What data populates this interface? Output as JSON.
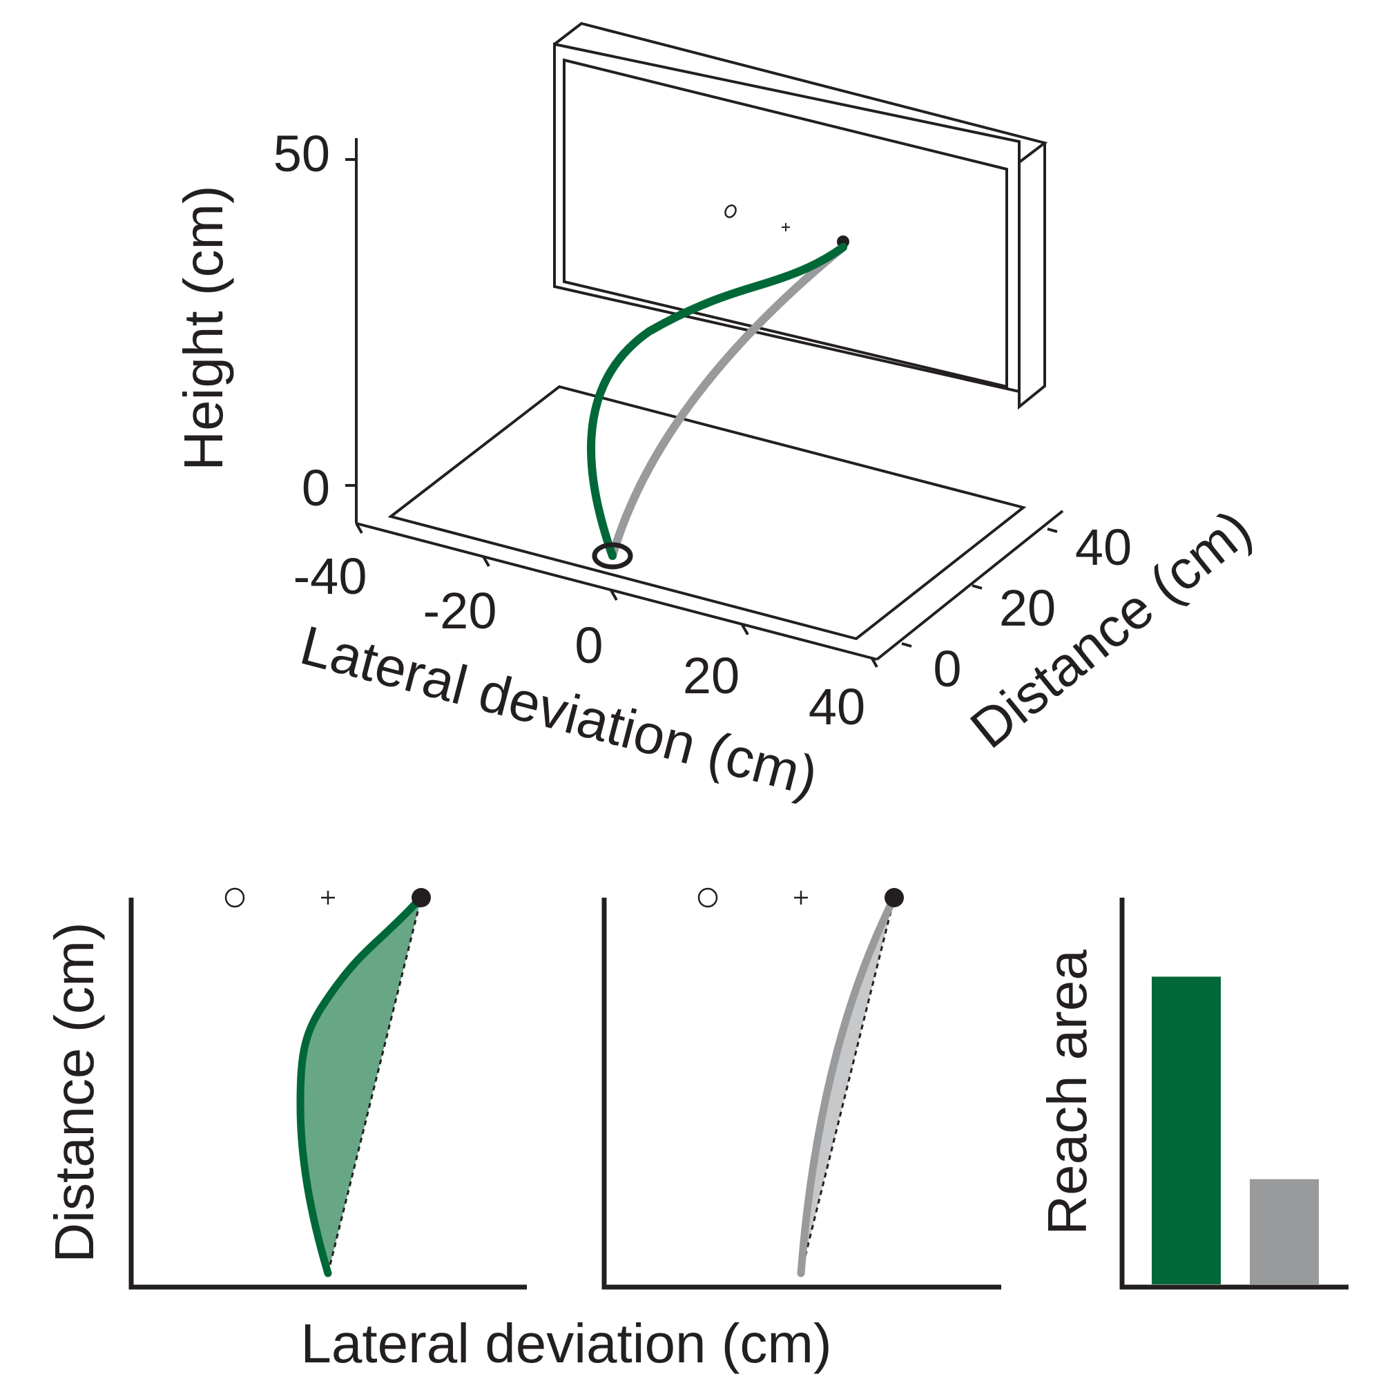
{
  "colors": {
    "green": "#006838",
    "green_fill": "#67a785",
    "gray": "#999a9c",
    "gray_fill": "#c7c8ca",
    "ink": "#231f20"
  },
  "panel3d": {
    "height_label": "Height (cm)",
    "height_ticks": [
      "50",
      "0"
    ],
    "lateral_label": "Lateral deviation (cm)",
    "lateral_ticks": [
      "-40",
      "-20",
      "0",
      "20",
      "40"
    ],
    "distance_label": "Distance (cm)",
    "distance_ticks": [
      "0",
      "20",
      "40"
    ]
  },
  "bottom": {
    "ylabel": "Distance (cm)",
    "xlabel": "Lateral deviation (cm)"
  },
  "chart_data": [
    {
      "type": "line",
      "view": "3d",
      "xlabel": "Lateral deviation (cm)",
      "ylabel": "Distance (cm)",
      "zlabel": "Height (cm)",
      "xticks": [
        -40,
        -20,
        0,
        20,
        40
      ],
      "yticks": [
        0,
        20,
        40
      ],
      "zticks": [
        0,
        50
      ],
      "series": [
        {
          "color": "green",
          "description_path": "curved reach (green)"
        },
        {
          "color": "gray",
          "description_path": "straight reach (gray)"
        }
      ]
    },
    {
      "type": "area",
      "view": "top-down",
      "xlabel": "Lateral deviation (cm)",
      "ylabel": "Distance (cm)",
      "series": [
        {
          "color": "green"
        }
      ]
    },
    {
      "type": "area",
      "view": "top-down",
      "series": [
        {
          "color": "gray"
        }
      ]
    },
    {
      "type": "bar",
      "ylabel": "Reach area",
      "categories": [
        "green",
        "gray"
      ],
      "values": [
        0.79,
        0.27
      ],
      "ylim": [
        0,
        1
      ]
    }
  ],
  "reach_area_label": "Reach area"
}
